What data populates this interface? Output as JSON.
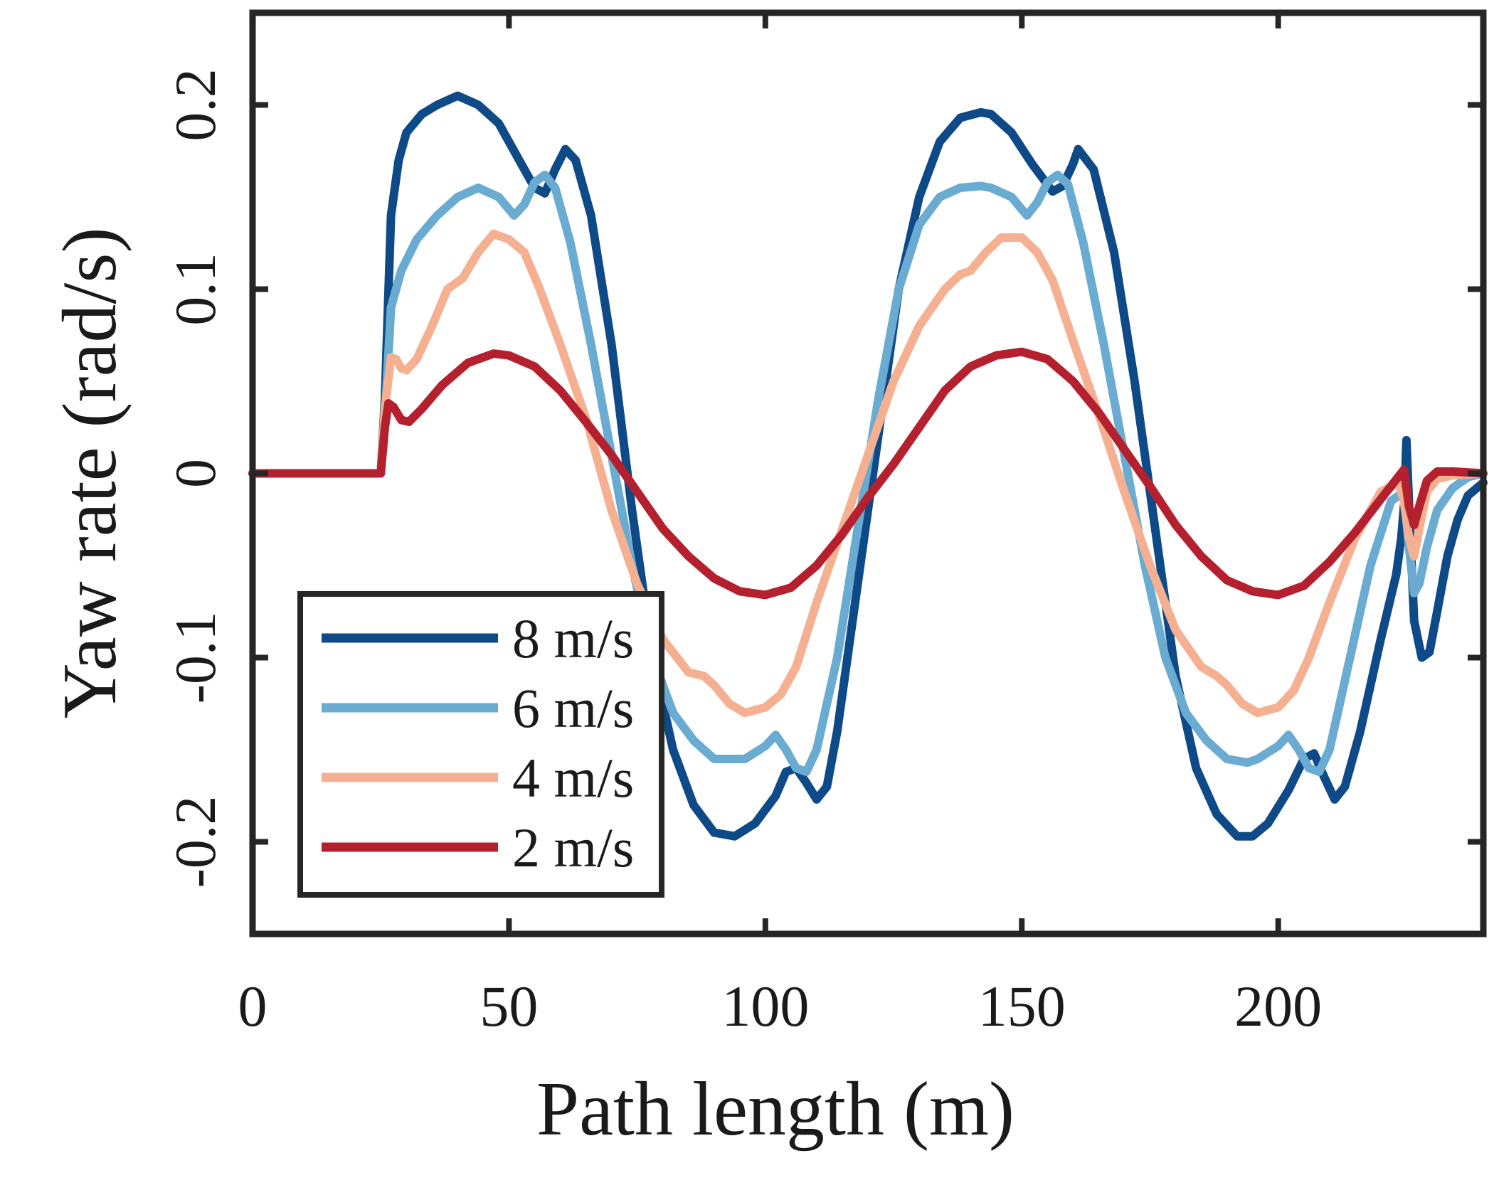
{
  "chart_data": {
    "type": "line",
    "title": "",
    "xlabel": "Path length (m)",
    "ylabel": "Yaw rate (rad/s)",
    "xlim": [
      0,
      240
    ],
    "ylim": [
      -0.25,
      0.25
    ],
    "xticks": [
      0,
      50,
      100,
      150,
      200
    ],
    "yticks": [
      -0.2,
      -0.1,
      0,
      0.1,
      0.2
    ],
    "xtick_labels": [
      "0",
      "50",
      "100",
      "150",
      "200"
    ],
    "ytick_labels": [
      "-0.2",
      "-0.1",
      "0",
      "0.1",
      "0.2"
    ],
    "legend_position": "lower-left",
    "grid": false,
    "series": [
      {
        "name": "8 m/s",
        "color": "#0e4a87",
        "x": [
          0,
          25,
          25.8,
          27,
          28.5,
          30,
          33,
          36,
          40,
          44,
          48,
          52,
          55,
          57,
          59,
          61,
          63,
          66,
          70,
          74,
          78,
          82,
          86,
          90,
          94,
          98,
          102,
          104,
          106,
          108,
          110,
          112,
          114,
          118,
          122,
          126,
          130,
          134,
          138,
          142,
          144,
          148,
          152,
          156,
          158,
          160,
          161,
          164,
          168,
          172,
          176,
          180,
          184,
          188,
          192,
          195,
          198,
          202,
          205,
          207,
          209,
          211,
          213,
          216,
          220,
          223,
          224,
          224.6,
          225,
          225.4,
          226.5,
          228,
          229.5,
          231,
          233,
          235,
          237,
          240
        ],
        "y": [
          0,
          0,
          0.04,
          0.14,
          0.17,
          0.185,
          0.195,
          0.2,
          0.205,
          0.2,
          0.19,
          0.17,
          0.155,
          0.152,
          0.165,
          0.176,
          0.17,
          0.14,
          0.07,
          -0.02,
          -0.1,
          -0.15,
          -0.18,
          -0.195,
          -0.197,
          -0.19,
          -0.175,
          -0.162,
          -0.16,
          -0.168,
          -0.177,
          -0.17,
          -0.14,
          -0.06,
          0.02,
          0.1,
          0.15,
          0.18,
          0.193,
          0.196,
          0.195,
          0.185,
          0.168,
          0.153,
          0.156,
          0.168,
          0.176,
          0.165,
          0.12,
          0.05,
          -0.03,
          -0.11,
          -0.16,
          -0.185,
          -0.197,
          -0.197,
          -0.19,
          -0.172,
          -0.155,
          -0.152,
          -0.165,
          -0.177,
          -0.17,
          -0.14,
          -0.09,
          -0.055,
          -0.035,
          -0.015,
          0.018,
          -0.01,
          -0.08,
          -0.1,
          -0.097,
          -0.075,
          -0.045,
          -0.025,
          -0.012,
          -0.005
        ]
      },
      {
        "name": "6 m/s",
        "color": "#6aabd2",
        "x": [
          0,
          25,
          25.8,
          27,
          29,
          32,
          36,
          40,
          44,
          48,
          51,
          53,
          55,
          57,
          59,
          62,
          66,
          70,
          74,
          78,
          82,
          86,
          90,
          94,
          96,
          100,
          102,
          104,
          106,
          108,
          110,
          114,
          118,
          122,
          126,
          130,
          134,
          138,
          142,
          144,
          148,
          151,
          153,
          155,
          157,
          159,
          162,
          166,
          170,
          174,
          178,
          182,
          186,
          190,
          194,
          196,
          200,
          202,
          204,
          206,
          208,
          210,
          214,
          218,
          222,
          224.5,
          225.5,
          226.5,
          227.5,
          229,
          231,
          234,
          237,
          240
        ],
        "y": [
          0,
          0,
          0.03,
          0.09,
          0.11,
          0.127,
          0.14,
          0.15,
          0.155,
          0.15,
          0.14,
          0.146,
          0.158,
          0.162,
          0.155,
          0.125,
          0.07,
          0.01,
          -0.05,
          -0.1,
          -0.13,
          -0.145,
          -0.155,
          -0.155,
          -0.155,
          -0.148,
          -0.142,
          -0.15,
          -0.16,
          -0.162,
          -0.15,
          -0.1,
          -0.03,
          0.04,
          0.1,
          0.135,
          0.15,
          0.155,
          0.156,
          0.155,
          0.15,
          0.14,
          0.147,
          0.158,
          0.162,
          0.157,
          0.125,
          0.07,
          0.01,
          -0.05,
          -0.1,
          -0.13,
          -0.145,
          -0.155,
          -0.157,
          -0.155,
          -0.148,
          -0.142,
          -0.15,
          -0.16,
          -0.162,
          -0.15,
          -0.1,
          -0.05,
          -0.015,
          -0.01,
          -0.04,
          -0.065,
          -0.06,
          -0.04,
          -0.02,
          -0.008,
          -0.002,
          0
        ]
      },
      {
        "name": "4 m/s",
        "color": "#f5b091",
        "x": [
          0,
          25,
          25.8,
          27,
          28,
          29,
          30,
          32,
          35,
          38,
          41,
          44,
          47,
          50,
          53,
          56,
          60,
          65,
          70,
          75,
          80,
          85,
          88,
          90,
          93,
          96,
          100,
          103,
          106,
          110,
          115,
          120,
          125,
          130,
          135,
          138,
          140,
          143,
          146,
          150,
          153,
          156,
          160,
          165,
          170,
          175,
          180,
          185,
          188,
          190,
          193,
          196,
          200,
          203,
          206,
          210,
          215,
          220,
          223.5,
          224.5,
          225.5,
          226.5,
          227.5,
          229,
          231,
          234,
          240
        ],
        "y": [
          0,
          0,
          0.035,
          0.063,
          0.062,
          0.057,
          0.056,
          0.062,
          0.08,
          0.1,
          0.106,
          0.12,
          0.13,
          0.127,
          0.12,
          0.1,
          0.07,
          0.03,
          -0.02,
          -0.06,
          -0.09,
          -0.108,
          -0.11,
          -0.115,
          -0.125,
          -0.13,
          -0.127,
          -0.12,
          -0.105,
          -0.07,
          -0.03,
          0.01,
          0.05,
          0.08,
          0.1,
          0.108,
          0.11,
          0.12,
          0.128,
          0.128,
          0.12,
          0.105,
          0.072,
          0.032,
          -0.01,
          -0.05,
          -0.085,
          -0.105,
          -0.11,
          -0.115,
          -0.125,
          -0.13,
          -0.127,
          -0.118,
          -0.1,
          -0.07,
          -0.035,
          -0.01,
          -0.005,
          -0.015,
          -0.035,
          -0.045,
          -0.03,
          -0.01,
          -0.003,
          -0.001,
          0
        ]
      },
      {
        "name": "2 m/s",
        "color": "#b5202e",
        "x": [
          0,
          25,
          25.8,
          26.5,
          27.5,
          29,
          30.5,
          33,
          37,
          42,
          47,
          50,
          55,
          60,
          65,
          70,
          75,
          80,
          85,
          90,
          95,
          100,
          105,
          110,
          115,
          120,
          125,
          130,
          135,
          140,
          145,
          150,
          155,
          160,
          165,
          170,
          175,
          180,
          185,
          190,
          195,
          200,
          205,
          210,
          215,
          220,
          224.5,
          225.5,
          226.5,
          227.5,
          229,
          231,
          234,
          240
        ],
        "y": [
          0,
          0,
          0.025,
          0.038,
          0.036,
          0.029,
          0.028,
          0.035,
          0.048,
          0.06,
          0.065,
          0.064,
          0.058,
          0.045,
          0.028,
          0.01,
          -0.01,
          -0.03,
          -0.045,
          -0.057,
          -0.064,
          -0.066,
          -0.062,
          -0.05,
          -0.033,
          -0.013,
          0.005,
          0.025,
          0.045,
          0.058,
          0.064,
          0.066,
          0.062,
          0.05,
          0.033,
          0.013,
          -0.007,
          -0.028,
          -0.045,
          -0.058,
          -0.064,
          -0.066,
          -0.061,
          -0.048,
          -0.032,
          -0.014,
          0.002,
          -0.018,
          -0.028,
          -0.018,
          -0.004,
          0.001,
          0.001,
          0
        ]
      }
    ]
  }
}
